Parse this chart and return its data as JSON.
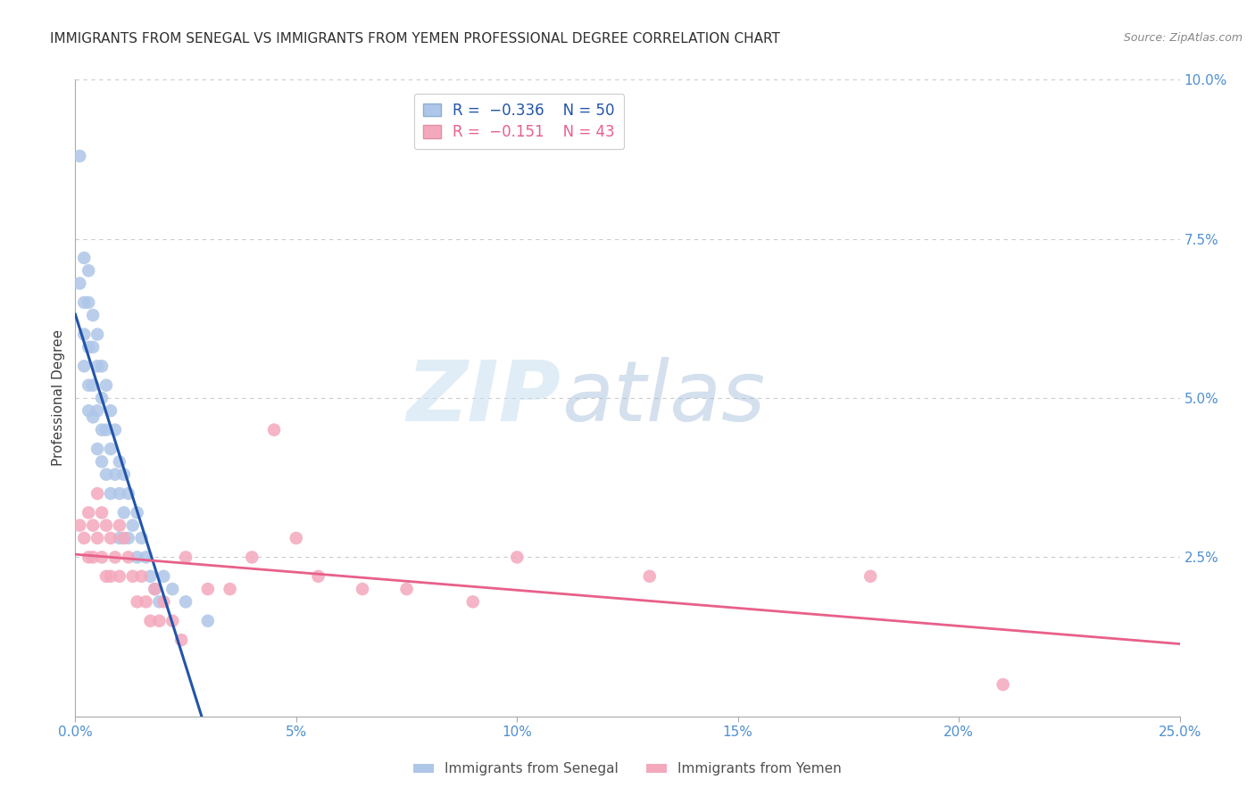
{
  "title": "IMMIGRANTS FROM SENEGAL VS IMMIGRANTS FROM YEMEN PROFESSIONAL DEGREE CORRELATION CHART",
  "source": "Source: ZipAtlas.com",
  "ylabel": "Professional Degree",
  "right_ytick_labels": [
    "10.0%",
    "7.5%",
    "5.0%",
    "2.5%"
  ],
  "right_ytick_values": [
    0.1,
    0.075,
    0.05,
    0.025
  ],
  "xlim": [
    0.0,
    0.25
  ],
  "ylim": [
    0.0,
    0.1
  ],
  "xtick_labels": [
    "0.0%",
    "5%",
    "10%",
    "15%",
    "20%",
    "25.0%"
  ],
  "xtick_values": [
    0.0,
    0.05,
    0.1,
    0.15,
    0.2,
    0.25
  ],
  "legend_entries": [
    {
      "label": "Immigrants from Senegal",
      "color": "#aec6e8"
    },
    {
      "label": "Immigrants from Yemen",
      "color": "#f4a8bc"
    }
  ],
  "R_senegal": -0.336,
  "N_senegal": 50,
  "R_yemen": -0.151,
  "N_yemen": 43,
  "senegal_color": "#aec6e8",
  "senegal_line_color": "#2255aa",
  "yemen_color": "#f4a8bc",
  "yemen_line_color": "#e8608a",
  "watermark_zip": "ZIP",
  "watermark_atlas": "atlas",
  "title_fontsize": 11,
  "source_fontsize": 9,
  "axis_tick_color": "#5090d0",
  "background_color": "#ffffff",
  "senegal_x": [
    0.001,
    0.001,
    0.002,
    0.002,
    0.002,
    0.002,
    0.003,
    0.003,
    0.003,
    0.003,
    0.003,
    0.004,
    0.004,
    0.004,
    0.004,
    0.005,
    0.005,
    0.005,
    0.005,
    0.006,
    0.006,
    0.006,
    0.006,
    0.007,
    0.007,
    0.007,
    0.008,
    0.008,
    0.008,
    0.009,
    0.009,
    0.01,
    0.01,
    0.01,
    0.011,
    0.011,
    0.012,
    0.012,
    0.013,
    0.014,
    0.014,
    0.015,
    0.016,
    0.017,
    0.018,
    0.019,
    0.02,
    0.022,
    0.025,
    0.03
  ],
  "senegal_y": [
    0.088,
    0.068,
    0.072,
    0.065,
    0.06,
    0.055,
    0.07,
    0.065,
    0.058,
    0.052,
    0.048,
    0.063,
    0.058,
    0.052,
    0.047,
    0.06,
    0.055,
    0.048,
    0.042,
    0.055,
    0.05,
    0.045,
    0.04,
    0.052,
    0.045,
    0.038,
    0.048,
    0.042,
    0.035,
    0.045,
    0.038,
    0.04,
    0.035,
    0.028,
    0.038,
    0.032,
    0.035,
    0.028,
    0.03,
    0.032,
    0.025,
    0.028,
    0.025,
    0.022,
    0.02,
    0.018,
    0.022,
    0.02,
    0.018,
    0.015
  ],
  "yemen_x": [
    0.001,
    0.002,
    0.003,
    0.003,
    0.004,
    0.004,
    0.005,
    0.005,
    0.006,
    0.006,
    0.007,
    0.007,
    0.008,
    0.008,
    0.009,
    0.01,
    0.01,
    0.011,
    0.012,
    0.013,
    0.014,
    0.015,
    0.016,
    0.017,
    0.018,
    0.019,
    0.02,
    0.022,
    0.024,
    0.025,
    0.03,
    0.035,
    0.04,
    0.045,
    0.05,
    0.055,
    0.065,
    0.075,
    0.09,
    0.1,
    0.13,
    0.18,
    0.21
  ],
  "yemen_y": [
    0.03,
    0.028,
    0.032,
    0.025,
    0.03,
    0.025,
    0.035,
    0.028,
    0.032,
    0.025,
    0.03,
    0.022,
    0.028,
    0.022,
    0.025,
    0.03,
    0.022,
    0.028,
    0.025,
    0.022,
    0.018,
    0.022,
    0.018,
    0.015,
    0.02,
    0.015,
    0.018,
    0.015,
    0.012,
    0.025,
    0.02,
    0.02,
    0.025,
    0.045,
    0.028,
    0.022,
    0.02,
    0.02,
    0.018,
    0.025,
    0.022,
    0.022,
    0.005
  ]
}
